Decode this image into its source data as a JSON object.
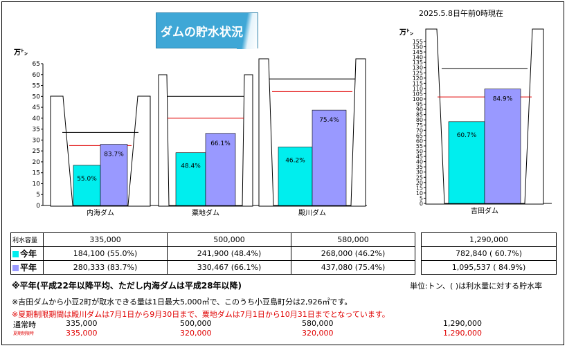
{
  "header": {
    "title": "ダムの貯水状況",
    "timestamp": "2025.5.8日午前0時現在"
  },
  "colors": {
    "this_year": "#00eeee",
    "average": "#9999ff",
    "red_line": "#e00000"
  },
  "chart_data": [
    {
      "type": "bar",
      "ylabel": "万㌧",
      "ylim": [
        0,
        65
      ],
      "yticks": [
        0,
        5,
        10,
        15,
        20,
        25,
        30,
        35,
        40,
        45,
        50,
        55,
        60,
        65
      ],
      "categories": [
        "内海ダム",
        "粟地ダム",
        "殿川ダム"
      ],
      "capacity": [
        33.5,
        50.0,
        58.0
      ],
      "series": [
        {
          "name": "今年",
          "values": [
            18.41,
            24.19,
            26.8
          ],
          "labels": [
            "55.0%",
            "48.4%",
            "46.2%"
          ]
        },
        {
          "name": "平年",
          "values": [
            28.03,
            33.05,
            43.71
          ],
          "labels": [
            "83.7%",
            "66.1%",
            "75.4%"
          ]
        }
      ]
    },
    {
      "type": "bar",
      "ylabel": "万㌧",
      "ylim": [
        0,
        155
      ],
      "yticks": [
        0,
        5,
        10,
        15,
        20,
        25,
        30,
        35,
        40,
        45,
        50,
        55,
        60,
        65,
        70,
        75,
        80,
        85,
        90,
        95,
        100,
        105,
        110,
        115,
        120,
        125,
        130,
        135,
        140,
        145,
        150,
        155
      ],
      "categories": [
        "吉田ダム"
      ],
      "capacity": [
        129.0
      ],
      "series": [
        {
          "name": "今年",
          "values": [
            78.28
          ],
          "labels": [
            "60.7%"
          ]
        },
        {
          "name": "平年",
          "values": [
            109.55
          ],
          "labels": [
            "84.9%"
          ]
        }
      ]
    }
  ],
  "table": {
    "row_capacity_label": "利水容量",
    "row_current_label": "今年",
    "row_average_label": "平年",
    "capacity": [
      "335,000",
      "500,000",
      "580,000",
      "1,290,000"
    ],
    "current": [
      "184,100 (55.0%)",
      "241,900 (48.4%)",
      "268,000 (46.2%)",
      "782,840 ( 60.7%)"
    ],
    "average": [
      "280,333 (83.7%)",
      "330,467 (66.1%)",
      "437,080 (75.4%)",
      "1,095,537 ( 84.9%)"
    ]
  },
  "notes": {
    "note1": "※平年(平成22年以降平均、ただし内海ダムは平成28年以降)",
    "unit": "単位:トン、( )は利水量に対する貯水率",
    "note2": "※吉田ダムから小豆2町が取水できる量は1日最大5,000㎥で、このうち小豆島町分は2,926㎥です。",
    "note3": "※夏期制限期間は殿川ダムは7月1日から9月30日まで、粟地ダムは7月1日から10月31日までとなっています。"
  },
  "limits": {
    "normal_label": "通常時",
    "normal": [
      "335,000",
      "500,000",
      "580,000",
      "1,290,000"
    ],
    "summer_label": "夏期制限時",
    "summer": [
      "335,000",
      "320,000",
      "320,000",
      "1,290,000"
    ]
  }
}
